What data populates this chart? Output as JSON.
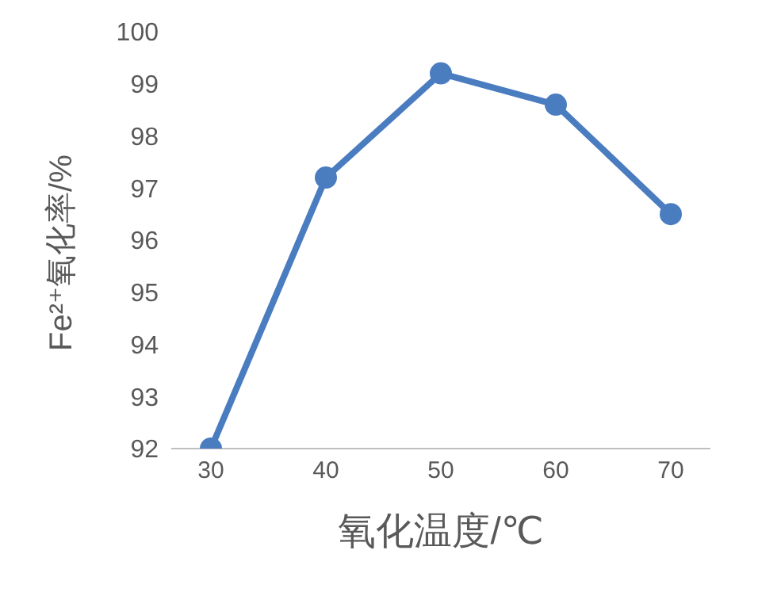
{
  "chart_data": {
    "type": "line",
    "xlabel": "氧化温度/℃",
    "ylabel": "Fe²⁺氧化率/%",
    "categories": [
      "30",
      "40",
      "50",
      "60",
      "70"
    ],
    "series": [
      {
        "color": "#4a7cc0",
        "values": [
          92,
          97.2,
          99.2,
          98.6,
          96.5
        ]
      }
    ],
    "ylim": [
      92,
      100
    ],
    "yticks": [
      92,
      93,
      94,
      95,
      96,
      97,
      98,
      99,
      100
    ],
    "grid": false,
    "marker": "circle",
    "line_style": "solid"
  }
}
